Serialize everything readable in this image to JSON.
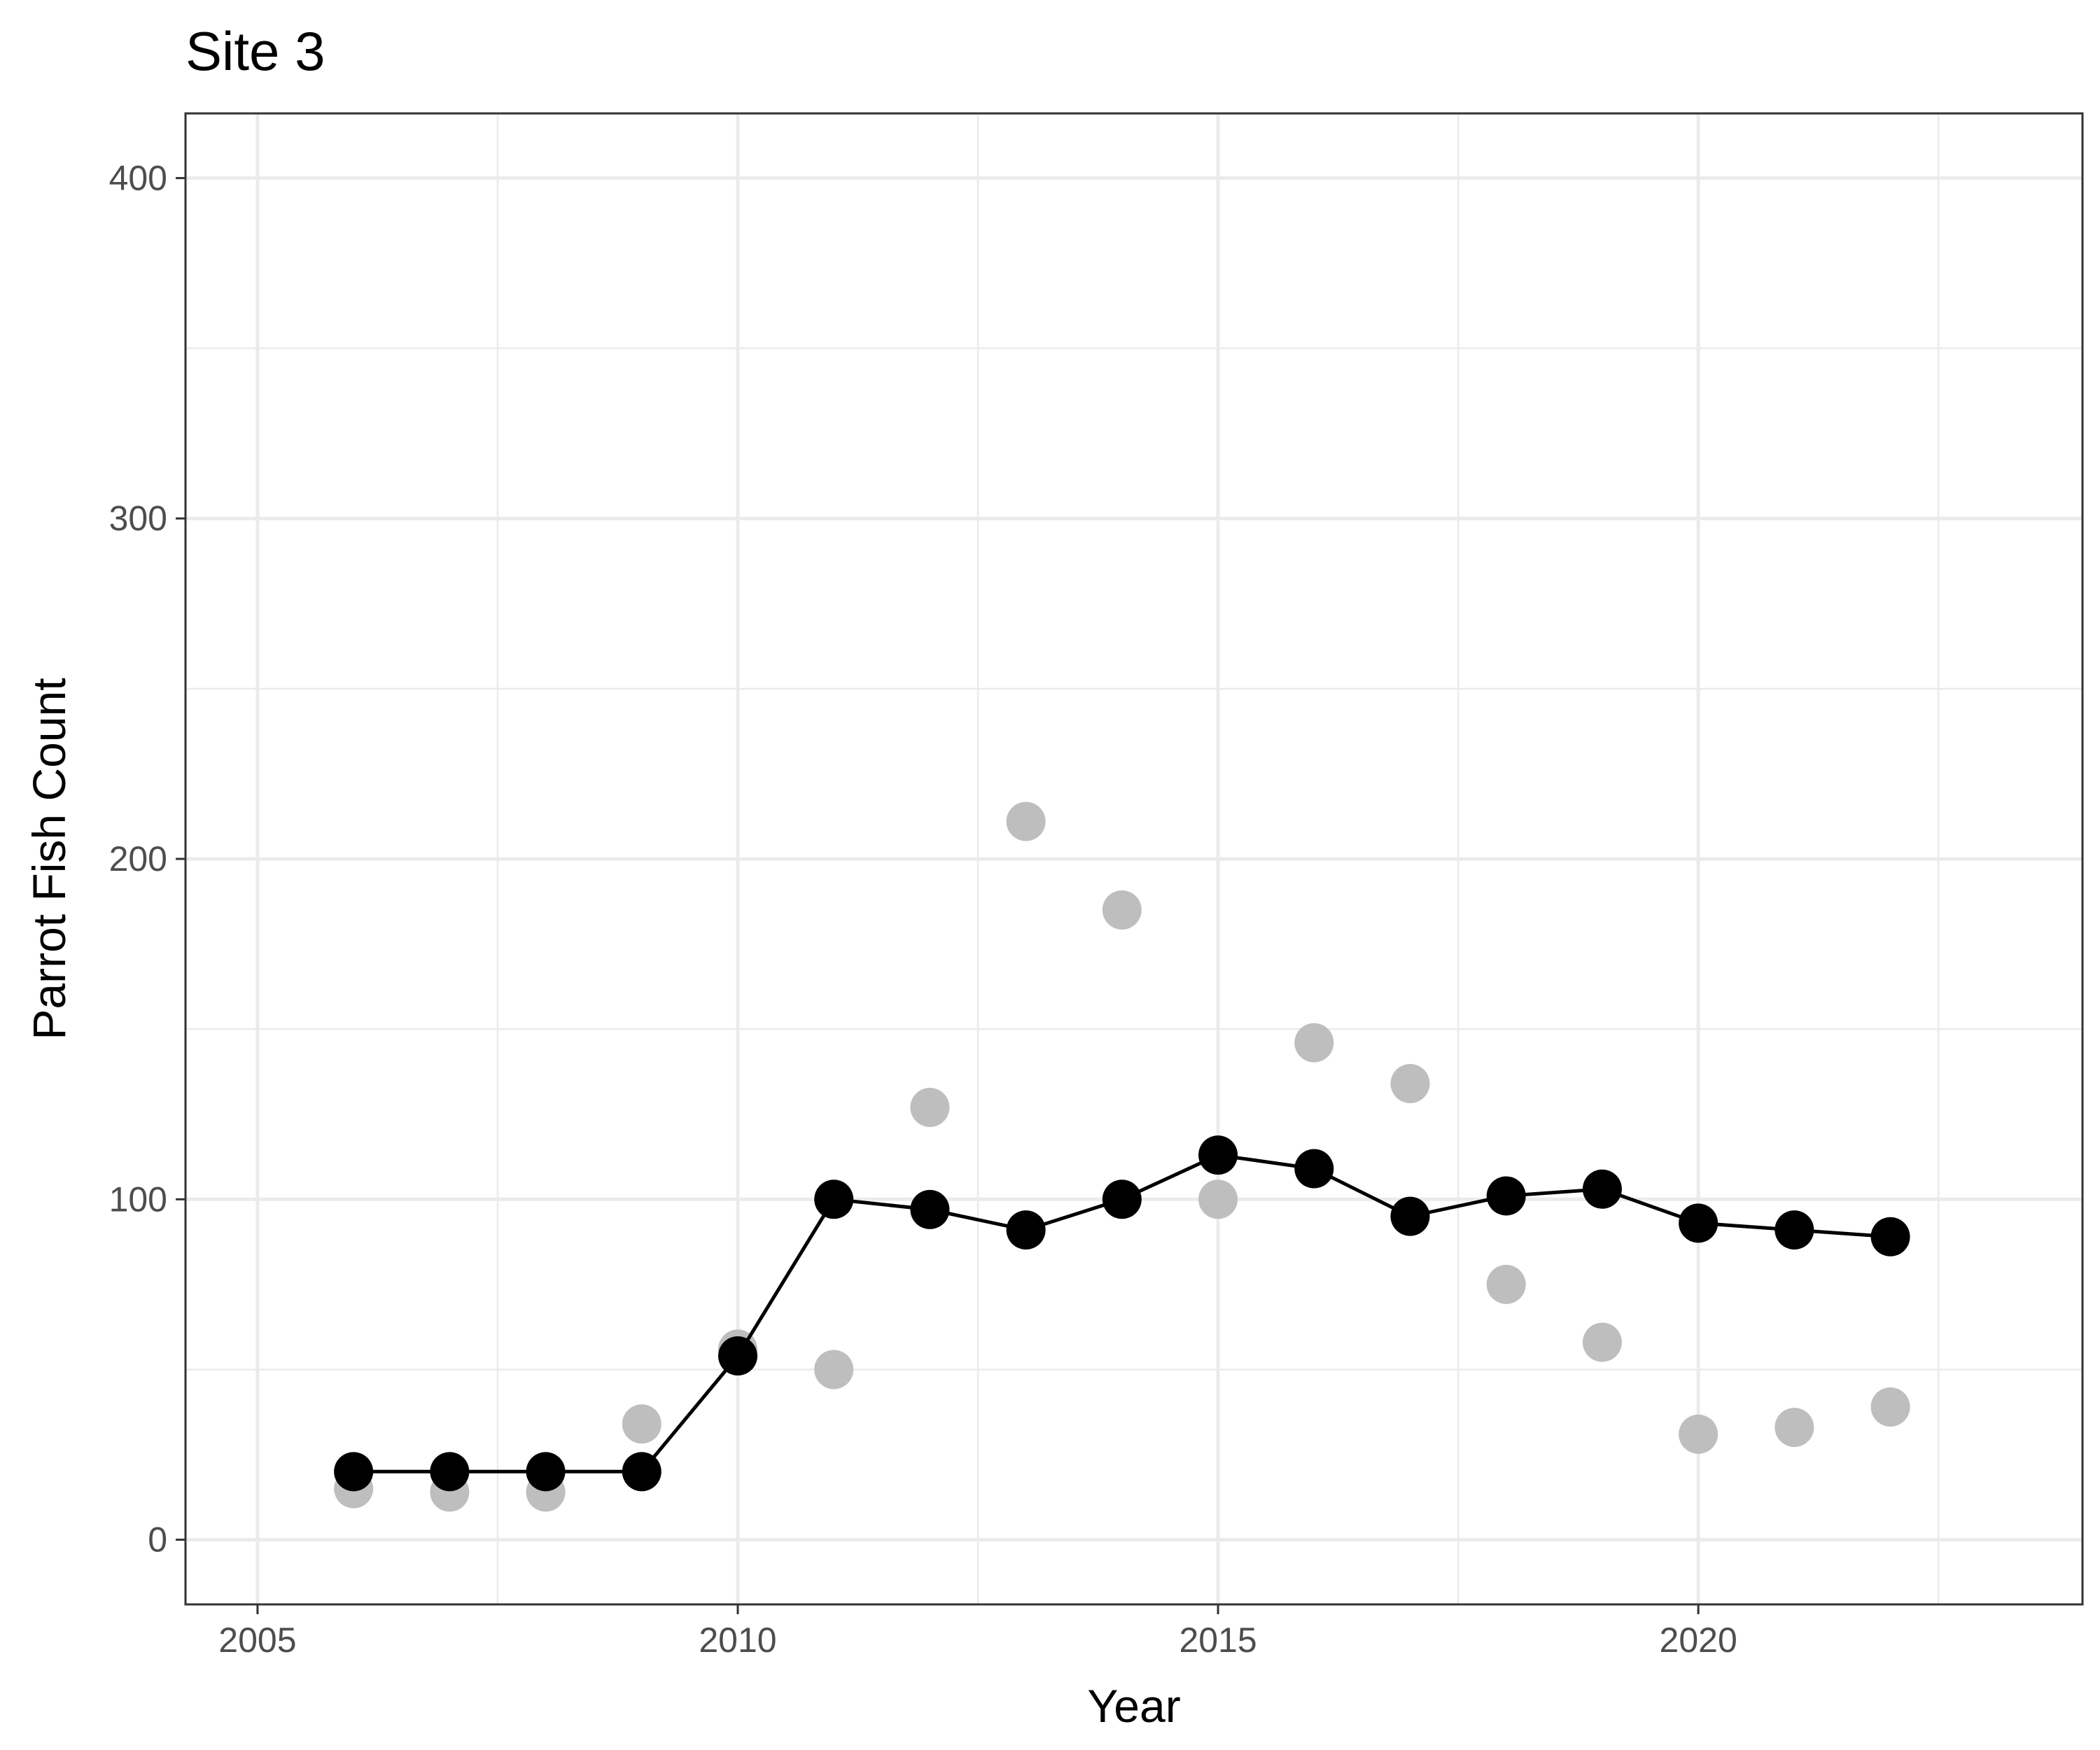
{
  "chart_data": {
    "type": "scatter",
    "title": "Site 3",
    "xlabel": "Year",
    "ylabel": "Parrot Fish Count",
    "xlim": [
      2004.25,
      2024.0
    ],
    "ylim": [
      -19,
      419
    ],
    "x_ticks": [
      2005,
      2010,
      2015,
      2020
    ],
    "y_ticks": [
      0,
      100,
      200,
      300,
      400
    ],
    "grid": true,
    "legend": "none",
    "series": [
      {
        "role": "observed",
        "color": "#bebebe",
        "marker": "circle",
        "x": [
          2006,
          2007,
          2008,
          2009,
          2010,
          2011,
          2012,
          2013,
          2014,
          2015,
          2016,
          2017,
          2018,
          2019,
          2020,
          2021,
          2022
        ],
        "y": [
          15,
          14,
          14,
          34,
          56,
          50,
          127,
          211,
          185,
          100,
          146,
          134,
          75,
          58,
          31,
          33,
          39
        ]
      },
      {
        "role": "trend",
        "color": "#000000",
        "marker": "circle",
        "line": true,
        "x": [
          2006,
          2007,
          2008,
          2009,
          2010,
          2011,
          2012,
          2013,
          2014,
          2015,
          2016,
          2017,
          2018,
          2019,
          2020,
          2021,
          2022
        ],
        "y": [
          20,
          20,
          20,
          20,
          54,
          100,
          97,
          91,
          100,
          113,
          109,
          95,
          101,
          103,
          93,
          91,
          89
        ]
      }
    ]
  }
}
